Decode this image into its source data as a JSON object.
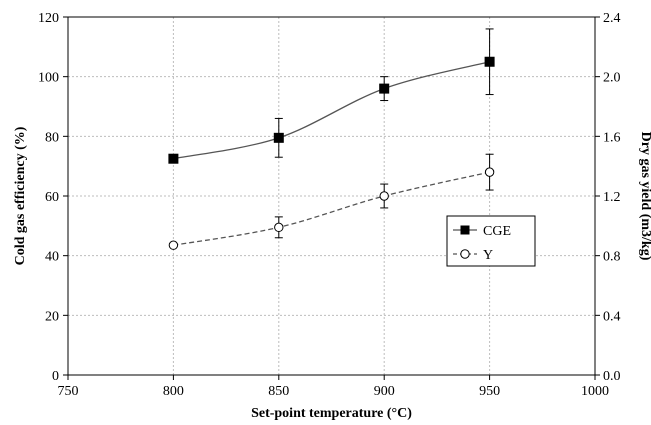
{
  "chart_data": {
    "type": "line",
    "title": "",
    "xlabel": "Set-point temperature (°C)",
    "ylabel_left": "Cold gas efficiency (%)",
    "ylabel_right": "Dry gas yield (m3/kg)",
    "xlim": [
      750,
      1000
    ],
    "xticks": [
      750,
      800,
      850,
      900,
      950,
      1000
    ],
    "ylim_left": [
      0,
      120
    ],
    "yticks_left": [
      0,
      20,
      40,
      60,
      80,
      100,
      120
    ],
    "ylim_right": [
      0,
      2.4
    ],
    "yticks_right": [
      "0.0",
      "0.4",
      "0.8",
      "1.2",
      "1.6",
      "2.0",
      "2.4"
    ],
    "grid": true,
    "legend_position": "center-right",
    "series": [
      {
        "name": "CGE",
        "axis": "left",
        "marker": "filled-square",
        "line": "solid",
        "color": "#000000",
        "x": [
          800,
          850,
          900,
          950
        ],
        "y": [
          72.5,
          79.5,
          96,
          105
        ],
        "err": [
          0,
          6.5,
          4,
          11
        ]
      },
      {
        "name": "Y",
        "axis": "right",
        "marker": "open-circle",
        "line": "dashed",
        "color": "#000000",
        "x": [
          800,
          850,
          900,
          950
        ],
        "y": [
          0.87,
          0.99,
          1.2,
          1.36
        ],
        "err": [
          0,
          0.07,
          0.08,
          0.12
        ]
      }
    ]
  }
}
